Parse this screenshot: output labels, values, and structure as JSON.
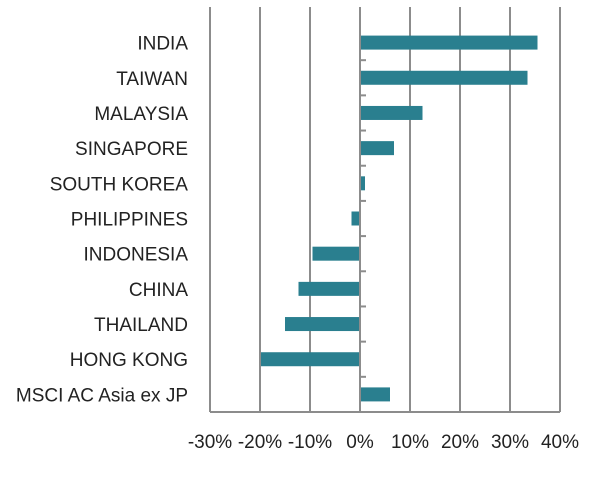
{
  "chart_data": {
    "type": "bar",
    "orientation": "horizontal",
    "title": "",
    "xlabel": "",
    "ylabel": "",
    "categories": [
      "INDIA",
      "TAIWAN",
      "MALAYSIA",
      "SINGAPORE",
      "SOUTH KOREA",
      "PHILIPPINES",
      "INDONESIA",
      "CHINA",
      "THAILAND",
      "HONG KONG",
      "MSCI AC Asia ex JP"
    ],
    "values": [
      35.5,
      33.5,
      12.5,
      6.8,
      1.0,
      -1.7,
      -9.5,
      -12.3,
      -15.0,
      -19.8,
      6.0
    ],
    "xlim": [
      -30,
      40
    ],
    "xticks": [
      -30,
      -20,
      -10,
      0,
      10,
      20,
      30,
      40
    ],
    "tick_labels": [
      "-30%",
      "-20%",
      "-10%",
      "0%",
      "10%",
      "20%",
      "30%",
      "40%"
    ],
    "grid": "vertical",
    "bar_color": "#2a7f8f",
    "grid_color": "#8c8c8c"
  }
}
